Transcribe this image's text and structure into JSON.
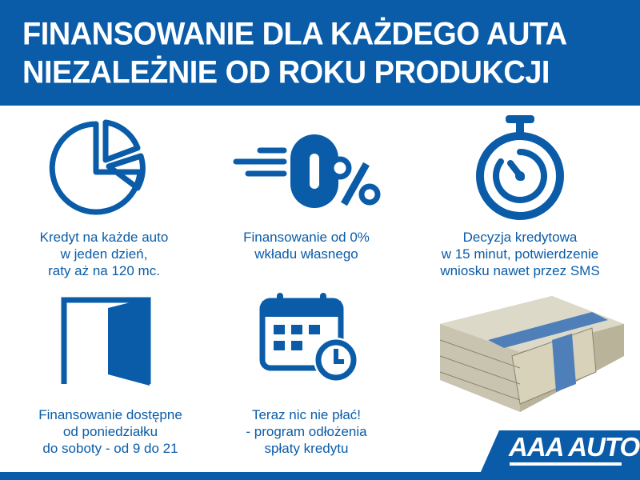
{
  "header": {
    "line1": "FINANSOWANIE DLA KAŻDEGO AUTA",
    "line2": "NIEZALEŻNIE OD ROKU PRODUKCJI"
  },
  "features": [
    {
      "icon": "pie-chart-icon",
      "lines": [
        "Kredyt na każde auto",
        "w jeden dzień,",
        "raty aż na 120 mc."
      ]
    },
    {
      "icon": "zero-percent-icon",
      "lines": [
        "Finansowanie od 0%",
        "wkładu własnego"
      ]
    },
    {
      "icon": "stopwatch-icon",
      "lines": [
        "Decyzja kredytowa",
        "w 15 minut, potwierdzenie",
        "wniosku nawet przez SMS"
      ]
    },
    {
      "icon": "open-door-icon",
      "lines": [
        "Finansowanie dostępne",
        "od poniedziałku",
        "do soboty - od 9 do 21"
      ]
    },
    {
      "icon": "calendar-clock-icon",
      "lines": [
        "Teraz nic nie płać!",
        "- program odłożenia",
        "spłaty kredytu"
      ]
    }
  ],
  "logo": "AAA AUTO",
  "colors": {
    "brand": "#0a5ca8"
  }
}
